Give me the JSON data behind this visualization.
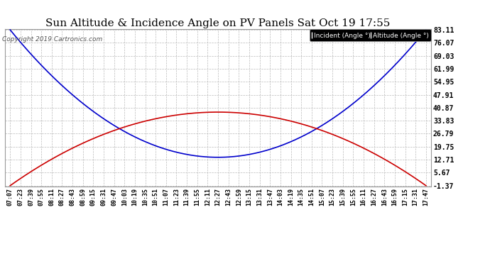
{
  "title": "Sun Altitude & Incidence Angle on PV Panels Sat Oct 19 17:55",
  "copyright": "Copyright 2019 Cartronics.com",
  "legend_incident": "Incident (Angle °)",
  "legend_altitude": "Altitude (Angle °)",
  "incident_color": "#0000cc",
  "altitude_color": "#cc0000",
  "yticks": [
    -1.37,
    5.67,
    12.71,
    19.75,
    26.79,
    33.83,
    40.87,
    47.91,
    54.95,
    61.99,
    69.03,
    76.07,
    83.11
  ],
  "ymin": -1.37,
  "ymax": 83.11,
  "background_color": "#ffffff",
  "grid_color": "#bbbbbb",
  "title_fontsize": 11,
  "copyright_fontsize": 6.5,
  "tick_fontsize": 6,
  "ytick_fontsize": 7,
  "incident_min": 14.0,
  "incident_min_idx": 20,
  "altitude_peak": 38.5,
  "altitude_peak_idx": 20,
  "xtick_labels": [
    "07:07",
    "07:23",
    "07:39",
    "07:55",
    "08:11",
    "08:27",
    "08:43",
    "08:59",
    "09:15",
    "09:31",
    "09:47",
    "10:03",
    "10:19",
    "10:35",
    "10:51",
    "11:07",
    "11:23",
    "11:39",
    "11:55",
    "12:11",
    "12:27",
    "12:43",
    "12:59",
    "13:15",
    "13:31",
    "13:47",
    "14:03",
    "14:19",
    "14:35",
    "14:51",
    "15:07",
    "15:23",
    "15:39",
    "15:55",
    "16:11",
    "16:27",
    "16:43",
    "16:59",
    "17:15",
    "17:31",
    "17:47"
  ]
}
